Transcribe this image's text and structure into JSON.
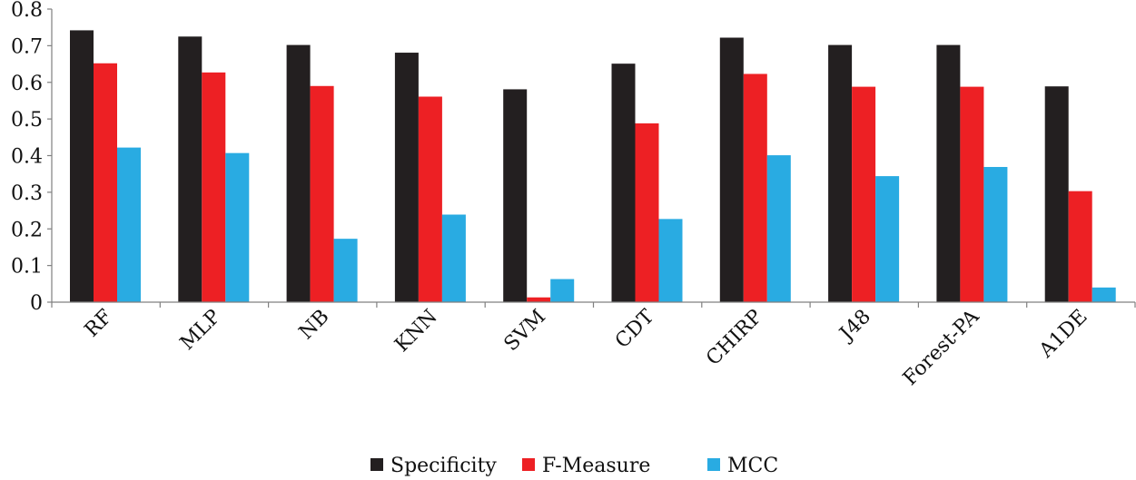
{
  "chart_data": {
    "type": "bar",
    "title": "",
    "xlabel": "",
    "ylabel": "",
    "ylim": [
      0,
      0.8
    ],
    "yticks": [
      "0",
      "0.1",
      "0.2",
      "0.3",
      "0.4",
      "0.5",
      "0.6",
      "0.7",
      "0.8"
    ],
    "grid": false,
    "legend_position": "bottom",
    "categories": [
      "RF",
      "MLP",
      "NB",
      "KNN",
      "SVM",
      "CDT",
      "CHIRP",
      "J48",
      "Forest-PA",
      "A1DE"
    ],
    "series": [
      {
        "name": "Specificity",
        "color": "#231f20",
        "values": [
          0.742,
          0.725,
          0.702,
          0.681,
          0.581,
          0.651,
          0.722,
          0.702,
          0.702,
          0.589
        ]
      },
      {
        "name": "F-Measure",
        "color": "#ed2024",
        "values": [
          0.652,
          0.627,
          0.59,
          0.561,
          0.013,
          0.488,
          0.623,
          0.588,
          0.588,
          0.303
        ]
      },
      {
        "name": "MCC",
        "color": "#29abe2",
        "values": [
          0.422,
          0.407,
          0.173,
          0.239,
          0.063,
          0.227,
          0.401,
          0.344,
          0.369,
          0.04
        ]
      }
    ]
  }
}
